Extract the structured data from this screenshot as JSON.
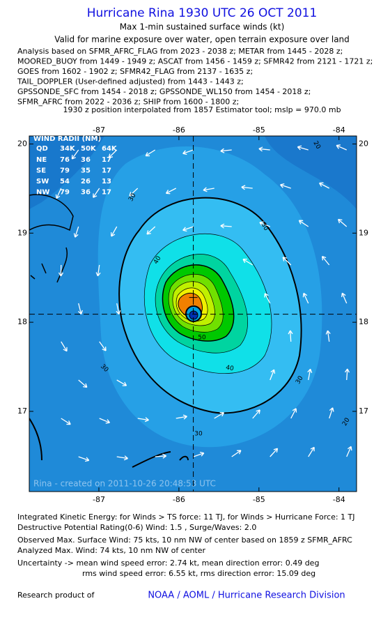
{
  "header": {
    "title": "Hurricane Rina 1930 UTC 26 OCT 2011",
    "subtitle": "Max 1-min sustained surface winds (kt)",
    "validity": "Valid for marine exposure over water, open terrain exposure over land",
    "analysis_lines": [
      "Analysis based on SFMR_AFRC_FLAG from 2023 - 2038 z; METAR from 1445 - 2028 z;",
      "MOORED_BUOY from 1449 - 1949 z; ASCAT from 1456 - 1459 z; SFMR42 from 2121 - 1721 z;",
      "GOES from 1602 - 1902 z; SFMR42_FLAG from 2137 - 1635 z;",
      "TAIL_DOPPLER (User-defined adjusted) from 1443 - 1443 z;",
      "GPSSONDE_SFC from 1454 - 2018 z; GPSSONDE_WL150 from 1454 - 2018 z;",
      "SFMR_AFRC from 2022 - 2036 z; SHIP from 1600 - 1800 z;"
    ],
    "position_note": "1930 z position interpolated from 1857 Estimator tool; mslp = 970.0 mb"
  },
  "map": {
    "xlim": [
      -87.87,
      -83.78
    ],
    "ylim": [
      16.1,
      20.09
    ],
    "xticks": [
      -87,
      -86,
      -85,
      -84
    ],
    "yticks": [
      17,
      18,
      19,
      20
    ],
    "center": {
      "lon": -85.82,
      "lat": 18.09
    },
    "credit": "Rina - created on 2011-10-26 20:48:53 UTC",
    "contour_labels": [
      30,
      30,
      30,
      30,
      30,
      40,
      40,
      50,
      20,
      20
    ]
  },
  "wind_radii": {
    "title": "WIND RADII (NM)",
    "columns": [
      "QD",
      "34K",
      "50K",
      "64K"
    ],
    "rows": [
      [
        "NE",
        "76",
        "36",
        "17"
      ],
      [
        "SE",
        "79",
        "35",
        "17"
      ],
      [
        "SW",
        "54",
        "26",
        "13"
      ],
      [
        "NW",
        "79",
        "36",
        "17"
      ]
    ]
  },
  "footer": {
    "lines": [
      "Integrated Kinetic Energy:  for Winds > TS force: 11 TJ,  for Winds > Hurricane Force: 1 TJ",
      "Destructive Potential Rating(0-6)   Wind: 1.5 , Surge/Waves: 2.0",
      "Observed Max. Surface Wind: 75 kts, 10 nm NW of center based on 1859 z SFMR_AFRC",
      "Analyzed Max. Wind: 74 kts, 10 nm NW of center",
      "Uncertainty -> mean wind speed error: 2.74 kt,   mean direction error: 0.49 deg",
      "rms wind speed error: 6.55 kt,  rms direction error: 15.09 deg"
    ],
    "research": "Research product of",
    "organization": "NOAA / AOML / Hurricane Research Division"
  }
}
